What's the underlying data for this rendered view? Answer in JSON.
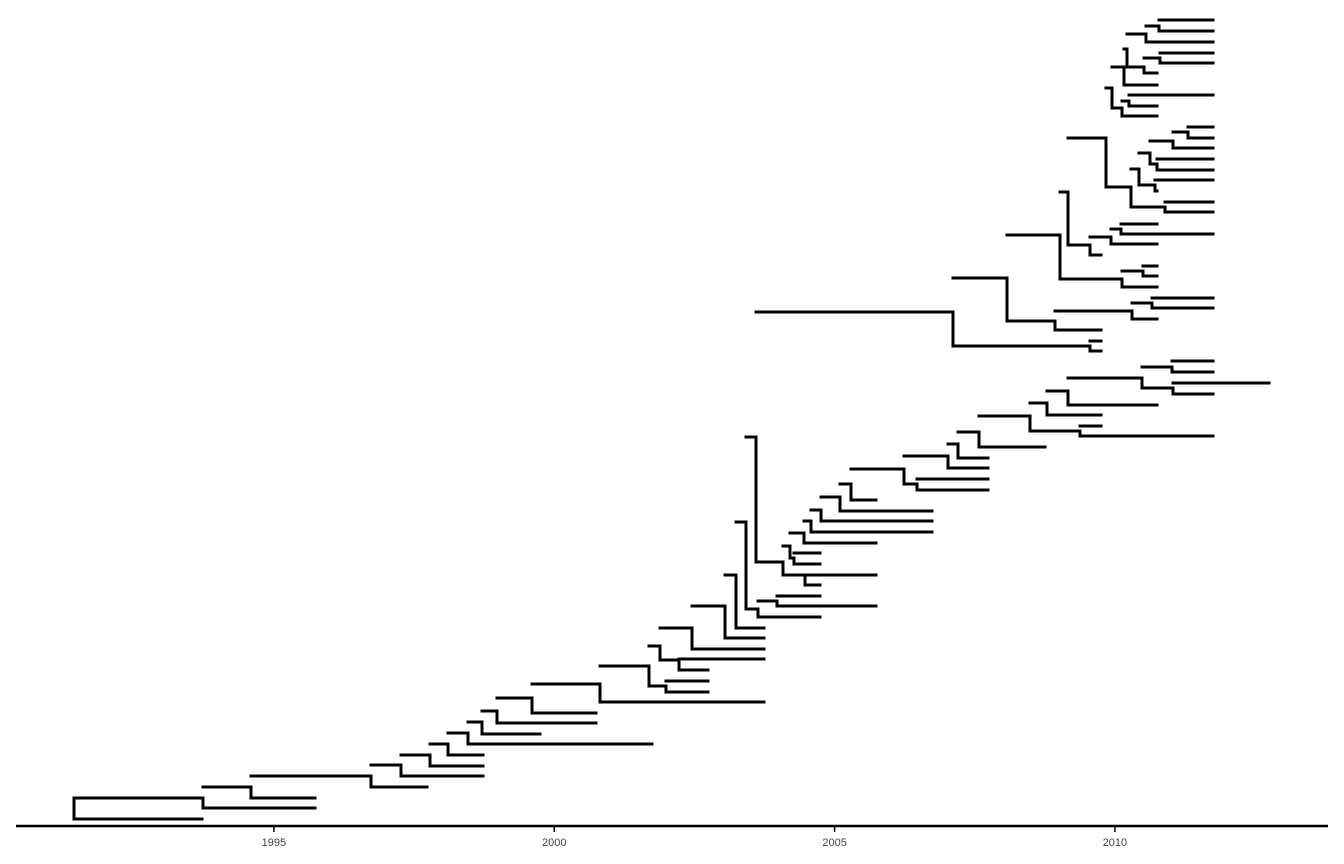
{
  "figure": {
    "type": "time-scaled phylogenetic tree",
    "branch_color": "#000000",
    "background": "#ffffff"
  },
  "time_axis": {
    "unit": "year",
    "range": [
      1990.4,
      2013.8
    ],
    "ticks": [
      {
        "value": 1995,
        "label": "1995"
      },
      {
        "value": 2000,
        "label": "2000"
      },
      {
        "value": 2005,
        "label": "2005"
      },
      {
        "value": 2010,
        "label": "2010"
      }
    ]
  }
}
